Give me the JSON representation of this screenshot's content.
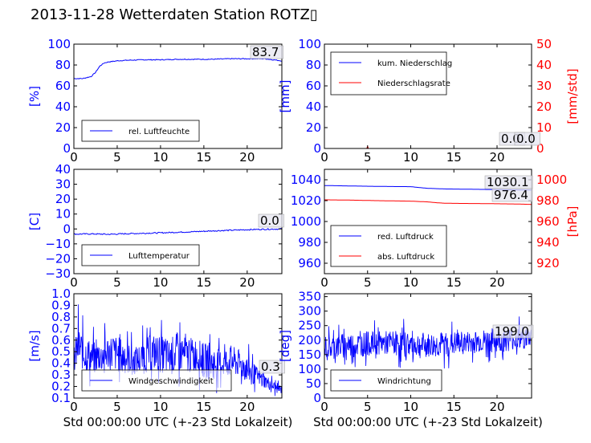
{
  "page": {
    "title": "2013-11-28 Wetterdaten Station ROTZ▯"
  },
  "colors": {
    "left_axis": "#0000ff",
    "right_axis": "#ff0000",
    "series_a": "#0000ff",
    "series_b": "#ff0000"
  },
  "chart_data": [
    {
      "id": "humidity",
      "type": "line",
      "ylabel": "[%]",
      "xlim": [
        0,
        24
      ],
      "ylim": [
        0,
        100
      ],
      "xticks": [
        "0",
        "5",
        "10",
        "15",
        "20"
      ],
      "yticks": [
        "0",
        "20",
        "40",
        "60",
        "80",
        "100"
      ],
      "legend": {
        "position": "lower-left",
        "entries": [
          "rel. Luftfeuchte"
        ]
      },
      "annotation": "83.7",
      "series": [
        {
          "name": "rel. Luftfeuchte",
          "axis": "left",
          "color": "#0000ff",
          "x": [
            0,
            1,
            2,
            2.5,
            3,
            3.5,
            4,
            5,
            6,
            8,
            10,
            12,
            14,
            16,
            18,
            20,
            22,
            23,
            24
          ],
          "y": [
            67,
            67,
            69,
            73,
            79,
            82,
            83,
            84,
            84.5,
            85,
            85,
            85.5,
            85.5,
            85.5,
            86,
            86,
            86,
            85,
            84
          ]
        }
      ]
    },
    {
      "id": "precipitation",
      "type": "line",
      "ylabel": "[mm]",
      "ylabel_right": "[mm/std]",
      "xlim": [
        0,
        24
      ],
      "ylim": [
        0,
        100
      ],
      "ylim_right": [
        0,
        50
      ],
      "xticks": [
        "0",
        "5",
        "10",
        "15",
        "20"
      ],
      "yticks": [
        "0",
        "20",
        "40",
        "60",
        "80",
        "100"
      ],
      "yticks_right": [
        "0",
        "10",
        "20",
        "30",
        "40",
        "50"
      ],
      "legend": {
        "position": "top-left",
        "entries": [
          "kum. Niederschlag",
          "Niederschlagsrate"
        ]
      },
      "annotation": "0.0",
      "annotation_b": "0.0",
      "series": [
        {
          "name": "kum. Niederschlag",
          "axis": "left",
          "color": "#0000ff",
          "x": [
            0,
            24
          ],
          "y": [
            0,
            0
          ]
        },
        {
          "name": "Niederschlagsrate",
          "axis": "right",
          "color": "#ff0000",
          "x": [
            0,
            4.9,
            5,
            5.1,
            24
          ],
          "y": [
            0,
            0,
            1,
            0,
            0
          ]
        }
      ]
    },
    {
      "id": "temperature",
      "type": "line",
      "ylabel": "[C]",
      "xlim": [
        0,
        24
      ],
      "ylim": [
        -30,
        40
      ],
      "xticks": [
        "0",
        "5",
        "10",
        "15",
        "20"
      ],
      "yticks": [
        "−30",
        "−20",
        "−10",
        "0",
        "10",
        "20",
        "30",
        "40"
      ],
      "legend": {
        "position": "lower-left",
        "entries": [
          "Lufttemperatur"
        ]
      },
      "annotation": "0.0",
      "series": [
        {
          "name": "Lufttemperatur",
          "axis": "left",
          "color": "#0000ff",
          "x": [
            0,
            2,
            4,
            6,
            8,
            10,
            12,
            14,
            16,
            18,
            20,
            22,
            24
          ],
          "y": [
            -3.5,
            -3.3,
            -3.6,
            -3.2,
            -2.9,
            -2.6,
            -2.2,
            -1.8,
            -1.3,
            -0.9,
            -0.5,
            -0.2,
            0.0
          ]
        }
      ]
    },
    {
      "id": "pressure",
      "type": "line",
      "ylabel": "",
      "ylabel_right": "[hPa]",
      "xlim": [
        0,
        24
      ],
      "ylim": [
        950,
        1050
      ],
      "ylim_right": [
        910,
        1010
      ],
      "xticks": [
        "0",
        "5",
        "10",
        "15",
        "20"
      ],
      "yticks": [
        "960",
        "980",
        "1000",
        "1020",
        "1040"
      ],
      "yticks_right": [
        "920",
        "940",
        "960",
        "980",
        "1000"
      ],
      "legend": {
        "position": "lower-left",
        "entries": [
          "red. Luftdruck",
          "abs. Luftdruck"
        ]
      },
      "annotation": "1030.1",
      "annotation_b": "976.4",
      "series": [
        {
          "name": "red. Luftdruck",
          "axis": "left",
          "color": "#0000ff",
          "x": [
            0,
            2,
            5,
            8,
            10,
            11,
            12,
            13,
            14,
            16,
            18,
            20,
            22,
            24
          ],
          "y": [
            1034.5,
            1034.2,
            1033.8,
            1033.5,
            1033.4,
            1032.5,
            1031.8,
            1031.5,
            1031.2,
            1031,
            1030.8,
            1030.6,
            1030.3,
            1030.1
          ]
        },
        {
          "name": "abs. Luftdruck",
          "axis": "right",
          "color": "#ff0000",
          "x": [
            0,
            3,
            6,
            10,
            12,
            13,
            14,
            16,
            18,
            20,
            22,
            24
          ],
          "y": [
            980.8,
            980.5,
            980,
            979.5,
            978.8,
            978,
            977.5,
            977.3,
            977.2,
            977,
            976.8,
            976.4
          ]
        }
      ]
    },
    {
      "id": "windspeed",
      "type": "line",
      "ylabel": "[m/s]",
      "xlim": [
        0,
        24
      ],
      "ylim": [
        0.1,
        1.0
      ],
      "xlabel": "Std 00:00:00 UTC (+-23 Std Lokalzeit)",
      "xticks": [
        "0",
        "5",
        "10",
        "15",
        "20"
      ],
      "yticks": [
        "0.1",
        "0.2",
        "0.3",
        "0.4",
        "0.5",
        "0.6",
        "0.7",
        "0.8",
        "0.9",
        "1.0"
      ],
      "legend": {
        "position": "lower-left",
        "entries": [
          "Windgeschwindigkeit"
        ]
      },
      "annotation": "0.3",
      "series": [
        {
          "name": "Windgeschwindigkeit",
          "axis": "left",
          "color": "#0000ff",
          "x": [
            0,
            0.5,
            1,
            1.5,
            2,
            3,
            4,
            5,
            6,
            7,
            8,
            9,
            10,
            11,
            12,
            13,
            14,
            15,
            16,
            17,
            18,
            19,
            20,
            21,
            22,
            23,
            24
          ],
          "y": [
            0.42,
            0.55,
            0.5,
            0.48,
            0.45,
            0.45,
            0.5,
            0.48,
            0.45,
            0.42,
            0.45,
            0.5,
            0.48,
            0.45,
            0.5,
            0.46,
            0.48,
            0.42,
            0.4,
            0.4,
            0.42,
            0.4,
            0.35,
            0.3,
            0.25,
            0.2,
            0.17
          ],
          "amplitude": [
            0.15,
            0.25,
            0.2,
            0.2,
            0.18,
            0.15,
            0.2,
            0.2,
            0.18,
            0.15,
            0.18,
            0.2,
            0.2,
            0.2,
            0.22,
            0.2,
            0.18,
            0.2,
            0.18,
            0.15,
            0.18,
            0.15,
            0.15,
            0.1,
            0.08,
            0.06,
            0.05
          ]
        }
      ]
    },
    {
      "id": "winddirection",
      "type": "line",
      "ylabel": "[deg]",
      "xlim": [
        0,
        24
      ],
      "ylim": [
        0,
        360
      ],
      "xlabel": "Std 00:00:00 UTC (+-23 Std Lokalzeit)",
      "xticks": [
        "0",
        "5",
        "10",
        "15",
        "20"
      ],
      "yticks": [
        "0",
        "50",
        "100",
        "150",
        "200",
        "250",
        "300",
        "350"
      ],
      "legend": {
        "position": "lower-left",
        "entries": [
          "Windrichtung"
        ]
      },
      "annotation": "199.0",
      "series": [
        {
          "name": "Windrichtung",
          "axis": "left",
          "color": "#0000ff",
          "x": [
            0,
            2,
            4,
            6,
            8,
            10,
            12,
            14,
            16,
            18,
            20,
            22,
            24
          ],
          "y": [
            175,
            180,
            185,
            190,
            190,
            185,
            180,
            185,
            190,
            195,
            200,
            205,
            210
          ],
          "amplitude": [
            50,
            55,
            55,
            50,
            55,
            60,
            55,
            55,
            50,
            50,
            55,
            50,
            50
          ]
        }
      ]
    }
  ]
}
